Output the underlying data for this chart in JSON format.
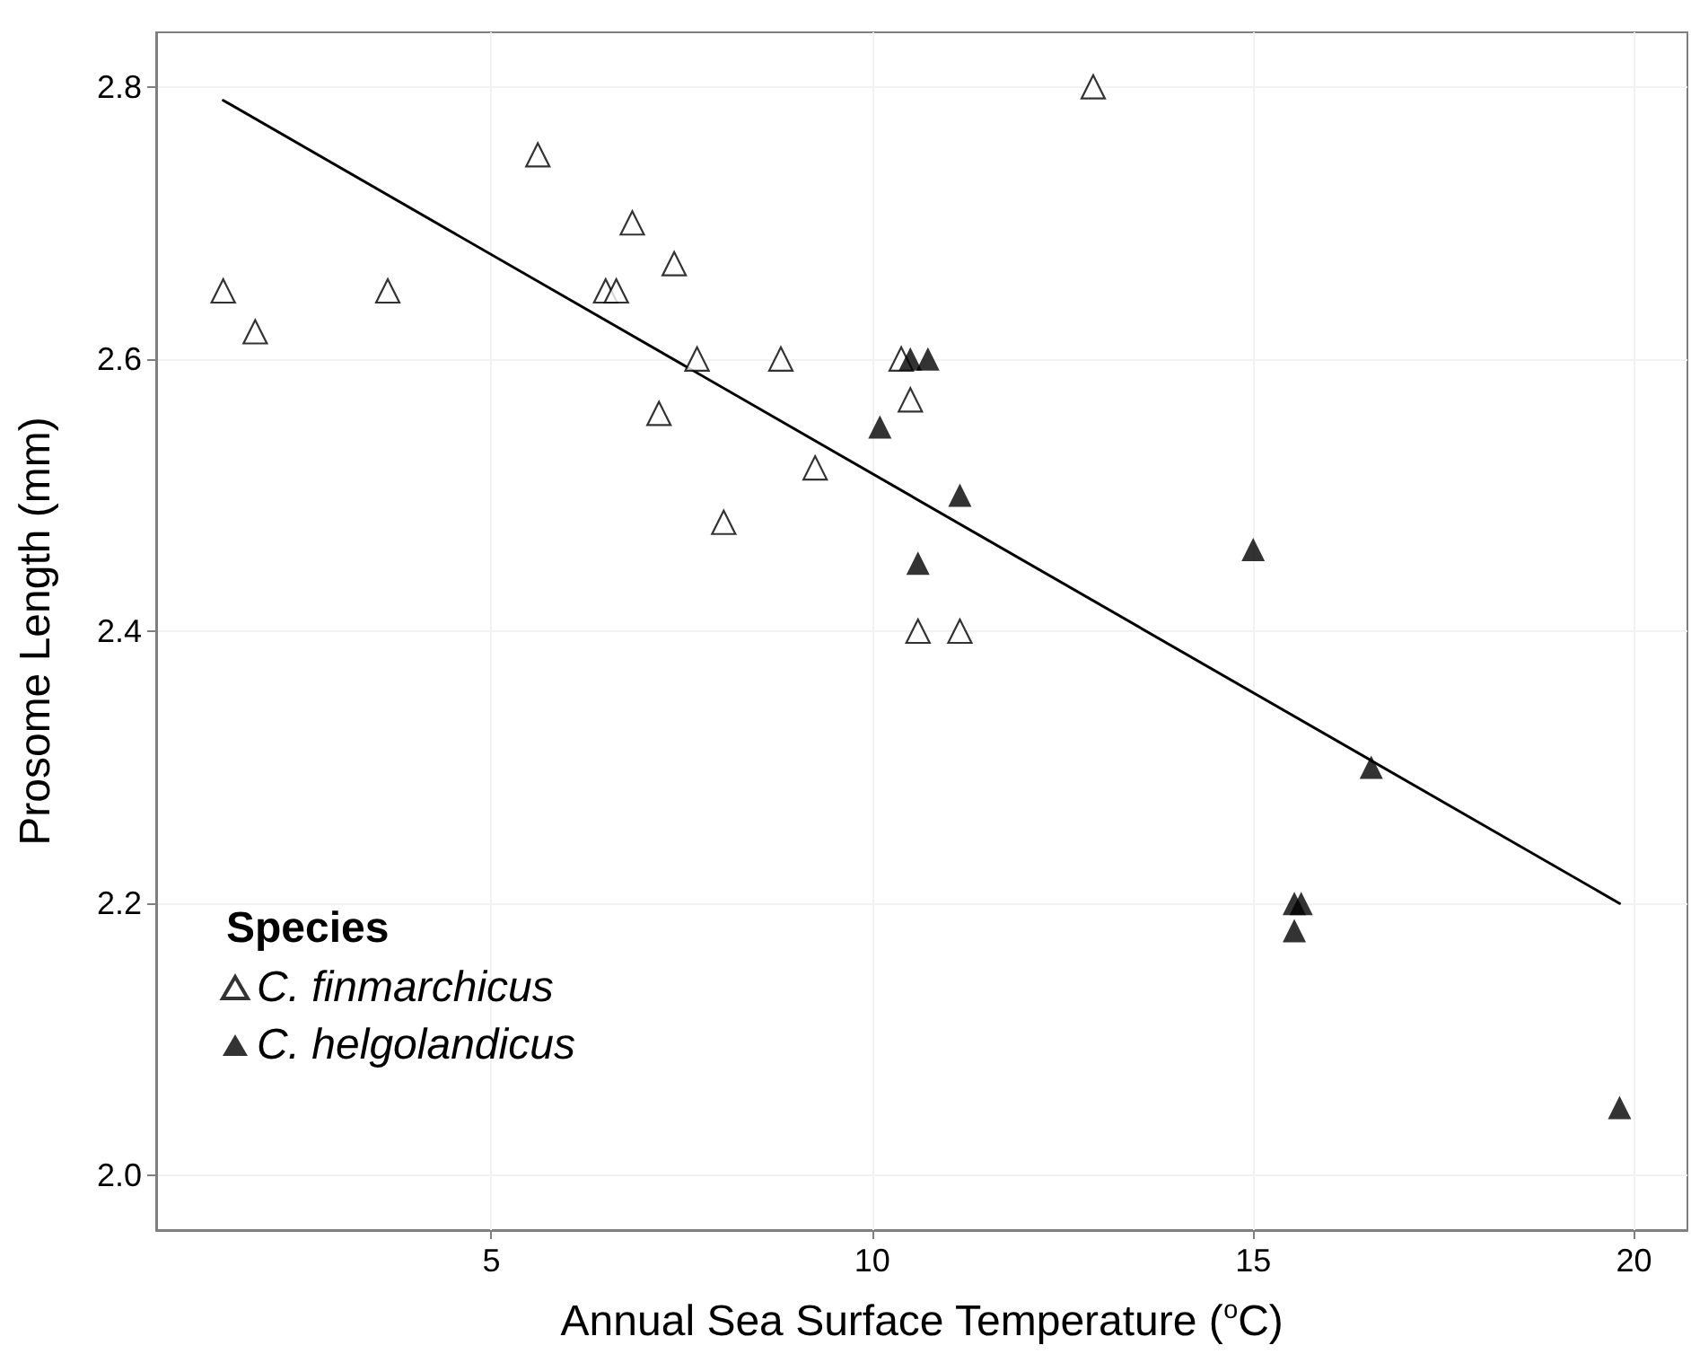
{
  "chart_data": {
    "type": "scatter",
    "xlabel": "Annual Sea Surface Temperature ($^{o}$C)",
    "ylabel": "Prosome Length (mm)",
    "legend_title": "Species",
    "xlim": [
      0.6,
      20.7
    ],
    "ylim": [
      1.96,
      2.84
    ],
    "xticks": [
      5,
      10,
      15,
      20
    ],
    "yticks": [
      {
        "value": 2,
        "label": "2.0"
      },
      2.2,
      2.4,
      2.6,
      2.8
    ],
    "grid": true,
    "legend": "bottom left",
    "marker": "triangle",
    "series": [
      {
        "name": "C. finmarchicus",
        "color": "#ffffff",
        "x": [
          1.48,
          1.9,
          3.64,
          5.61,
          6.85,
          6.5,
          6.64,
          7.4,
          7.7,
          7.2,
          8.05,
          8.8,
          9.25,
          10.38,
          10.5,
          10.6,
          11.15,
          12.9
        ],
        "values": [
          2.65,
          2.62,
          2.65,
          2.75,
          2.7,
          2.65,
          2.65,
          2.67,
          2.6,
          2.56,
          2.48,
          2.6,
          2.52,
          2.6,
          2.57,
          2.4,
          2.4,
          2.8
        ]
      },
      {
        "name": "C. helgolandicus",
        "color": "#000000",
        "x": [
          10.5,
          10.73,
          10.1,
          11.15,
          10.6,
          15.0,
          16.55,
          15.54,
          15.63,
          15.54,
          19.81
        ],
        "values": [
          2.6,
          2.6,
          2.55,
          2.5,
          2.45,
          2.46,
          2.3,
          2.2,
          2.2,
          2.18,
          2.05
        ]
      },
      {
        "type": "line",
        "color": "#000000",
        "marker": "none",
        "line_style": "solid",
        "x": [
          1.48,
          19.81
        ],
        "values": [
          2.79,
          2.2
        ]
      }
    ]
  }
}
